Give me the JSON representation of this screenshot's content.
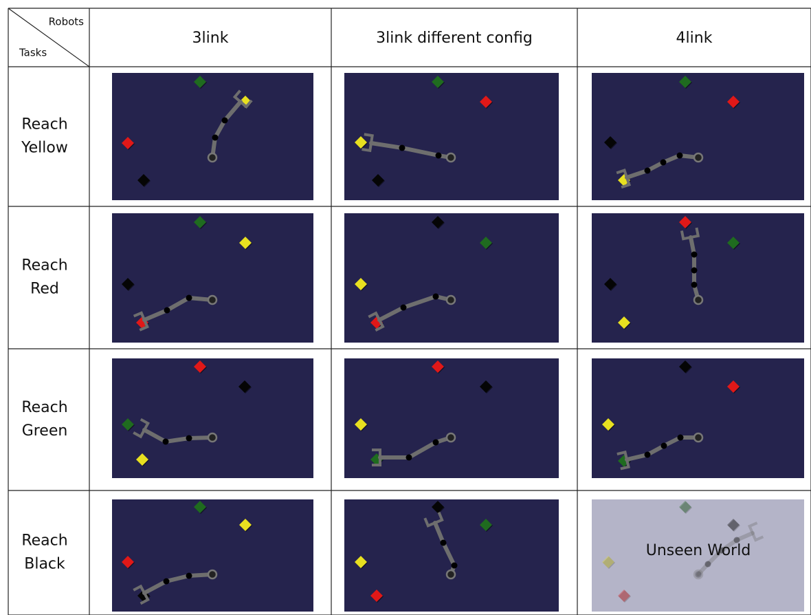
{
  "header": {
    "corner_top": "Robots",
    "corner_bottom": "Tasks",
    "columns": [
      "3link",
      "3link different config",
      "4link"
    ]
  },
  "rows": [
    {
      "label": [
        "Reach",
        "Yellow"
      ]
    },
    {
      "label": [
        "Reach",
        "Red"
      ]
    },
    {
      "label": [
        "Reach",
        "Green"
      ]
    },
    {
      "label": [
        "Reach",
        "Black"
      ]
    }
  ],
  "overlay": "Unseen World"
}
